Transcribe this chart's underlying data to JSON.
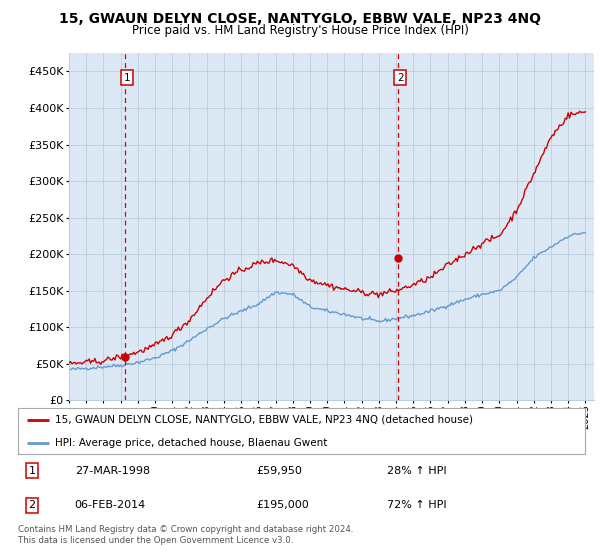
{
  "title": "15, GWAUN DELYN CLOSE, NANTYGLO, EBBW VALE, NP23 4NQ",
  "subtitle": "Price paid vs. HM Land Registry's House Price Index (HPI)",
  "property_label": "15, GWAUN DELYN CLOSE, NANTYGLO, EBBW VALE, NP23 4NQ (detached house)",
  "hpi_label": "HPI: Average price, detached house, Blaenau Gwent",
  "legend_entry1_num": "1",
  "legend_entry1_date": "27-MAR-1998",
  "legend_entry1_price": "£59,950",
  "legend_entry1_hpi": "28% ↑ HPI",
  "legend_entry2_num": "2",
  "legend_entry2_date": "06-FEB-2014",
  "legend_entry2_price": "£195,000",
  "legend_entry2_hpi": "72% ↑ HPI",
  "copyright_text": "Contains HM Land Registry data © Crown copyright and database right 2024.\nThis data is licensed under the Open Government Licence v3.0.",
  "property_color": "#cc0000",
  "hpi_color": "#6699cc",
  "vline_color": "#dd0000",
  "marker_color": "#cc0000",
  "chart_bg_color": "#dce9f5",
  "background_color": "#ffffff",
  "grid_color": "#b8cfe0",
  "ylim": [
    0,
    475000
  ],
  "yticks": [
    0,
    50000,
    100000,
    150000,
    200000,
    250000,
    300000,
    350000,
    400000,
    450000
  ],
  "sale1_x": 1998.23,
  "sale1_y": 59950,
  "sale2_x": 2014.09,
  "sale2_y": 195000,
  "xmin": 1995,
  "xmax": 2025.5,
  "hpi_years": [
    1995,
    1996,
    1997,
    1998,
    1999,
    2000,
    2001,
    2002,
    2003,
    2004,
    2005,
    2006,
    2007,
    2008,
    2009,
    2010,
    2011,
    2012,
    2013,
    2014,
    2015,
    2016,
    2017,
    2018,
    2019,
    2020,
    2021,
    2022,
    2023,
    2024,
    2025
  ],
  "hpi_vals": [
    42000,
    44000,
    46000,
    48000,
    52000,
    58000,
    68000,
    82000,
    98000,
    112000,
    122000,
    132000,
    148000,
    145000,
    128000,
    122000,
    118000,
    112000,
    108000,
    112000,
    116000,
    122000,
    130000,
    138000,
    145000,
    150000,
    168000,
    195000,
    210000,
    225000,
    230000
  ],
  "prop_years": [
    1995,
    1996,
    1997,
    1998,
    1999,
    2000,
    2001,
    2002,
    2003,
    2004,
    2005,
    2006,
    2007,
    2008,
    2009,
    2010,
    2011,
    2012,
    2013,
    2014,
    2015,
    2016,
    2017,
    2018,
    2019,
    2020,
    2021,
    2022,
    2023,
    2024,
    2025
  ],
  "prop_vals": [
    50000,
    52000,
    54000,
    60000,
    66000,
    75000,
    90000,
    110000,
    140000,
    165000,
    178000,
    188000,
    192000,
    185000,
    165000,
    158000,
    152000,
    148000,
    145000,
    150000,
    158000,
    168000,
    185000,
    200000,
    215000,
    225000,
    260000,
    310000,
    360000,
    390000,
    395000
  ]
}
